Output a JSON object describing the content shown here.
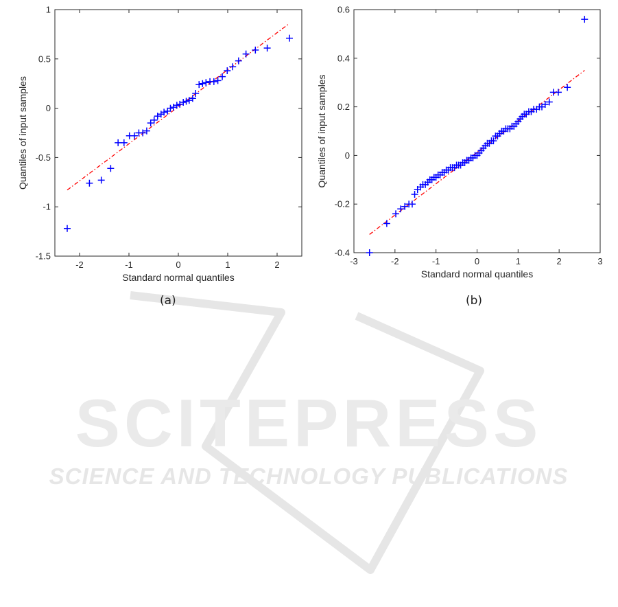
{
  "watermark": {
    "brand": "SCITEPRESS",
    "tagline": "SCIENCE AND TECHNOLOGY PUBLICATIONS"
  },
  "chart_data": [
    {
      "type": "scatter",
      "caption": "(a)",
      "title": "",
      "xlabel": "Standard normal quantiles",
      "ylabel": "Quantiles of input samples",
      "xlim": [
        -2.5,
        2.5
      ],
      "ylim": [
        -1.5,
        1
      ],
      "xticks": [
        -2,
        -1,
        0,
        1,
        2
      ],
      "yticks": [
        -1.5,
        -1,
        -0.5,
        0,
        0.5,
        1
      ],
      "grid": false,
      "colors": {
        "points": "#0000ff",
        "reference_line": "#ff0000"
      },
      "series": [
        {
          "marker": "+",
          "x": [
            -2.25,
            -1.8,
            -1.56,
            -1.37,
            -1.22,
            -1.1,
            -0.99,
            -0.89,
            -0.8,
            -0.72,
            -0.64,
            -0.56,
            -0.49,
            -0.42,
            -0.35,
            -0.29,
            -0.22,
            -0.16,
            -0.1,
            -0.03,
            0.03,
            0.1,
            0.16,
            0.22,
            0.29,
            0.35,
            0.42,
            0.49,
            0.56,
            0.64,
            0.72,
            0.8,
            0.89,
            0.99,
            1.1,
            1.22,
            1.37,
            1.56,
            1.8,
            2.25
          ],
          "y": [
            -1.22,
            -0.76,
            -0.73,
            -0.61,
            -0.35,
            -0.35,
            -0.28,
            -0.28,
            -0.25,
            -0.25,
            -0.23,
            -0.15,
            -0.12,
            -0.08,
            -0.06,
            -0.04,
            -0.03,
            0.0,
            0.01,
            0.03,
            0.04,
            0.06,
            0.07,
            0.08,
            0.1,
            0.15,
            0.24,
            0.25,
            0.26,
            0.27,
            0.27,
            0.28,
            0.32,
            0.38,
            0.42,
            0.48,
            0.55,
            0.59,
            0.61,
            0.71
          ]
        }
      ],
      "reference_line": {
        "x": [
          -2.25,
          2.25
        ],
        "y": [
          -0.83,
          0.86
        ],
        "style": "dash-dot"
      }
    },
    {
      "type": "scatter",
      "caption": "(b)",
      "title": "",
      "xlabel": "Standard normal quantiles",
      "ylabel": "Quantiles of input samples",
      "xlim": [
        -3,
        3
      ],
      "ylim": [
        -0.4,
        0.6
      ],
      "xticks": [
        -3,
        -2,
        -1,
        0,
        1,
        2,
        3
      ],
      "yticks": [
        -0.4,
        -0.2,
        0,
        0.2,
        0.4,
        0.6
      ],
      "grid": false,
      "colors": {
        "points": "#0000ff",
        "reference_line": "#ff0000"
      },
      "series": [
        {
          "marker": "+",
          "x": [
            -2.62,
            -2.2,
            -1.98,
            -1.86,
            -1.76,
            -1.66,
            -1.58,
            -1.52,
            -1.45,
            -1.38,
            -1.32,
            -1.26,
            -1.2,
            -1.15,
            -1.1,
            -1.05,
            -1.0,
            -0.95,
            -0.9,
            -0.85,
            -0.8,
            -0.75,
            -0.7,
            -0.65,
            -0.6,
            -0.55,
            -0.5,
            -0.45,
            -0.4,
            -0.35,
            -0.3,
            -0.25,
            -0.2,
            -0.15,
            -0.1,
            -0.05,
            0.0,
            0.05,
            0.1,
            0.15,
            0.2,
            0.25,
            0.3,
            0.35,
            0.4,
            0.45,
            0.5,
            0.55,
            0.6,
            0.65,
            0.7,
            0.75,
            0.8,
            0.85,
            0.9,
            0.95,
            1.0,
            1.05,
            1.1,
            1.15,
            1.2,
            1.26,
            1.32,
            1.38,
            1.45,
            1.52,
            1.58,
            1.66,
            1.76,
            1.86,
            1.98,
            2.2,
            2.62
          ],
          "y": [
            -0.4,
            -0.28,
            -0.24,
            -0.22,
            -0.21,
            -0.2,
            -0.2,
            -0.16,
            -0.14,
            -0.13,
            -0.12,
            -0.12,
            -0.11,
            -0.1,
            -0.1,
            -0.09,
            -0.09,
            -0.08,
            -0.08,
            -0.07,
            -0.07,
            -0.06,
            -0.06,
            -0.05,
            -0.05,
            -0.05,
            -0.04,
            -0.04,
            -0.04,
            -0.03,
            -0.03,
            -0.02,
            -0.02,
            -0.01,
            -0.01,
            0.0,
            0.0,
            0.01,
            0.02,
            0.03,
            0.04,
            0.05,
            0.05,
            0.06,
            0.06,
            0.08,
            0.08,
            0.09,
            0.1,
            0.1,
            0.11,
            0.11,
            0.11,
            0.12,
            0.12,
            0.13,
            0.14,
            0.15,
            0.16,
            0.17,
            0.17,
            0.18,
            0.18,
            0.19,
            0.19,
            0.2,
            0.2,
            0.21,
            0.22,
            0.26,
            0.26,
            0.28,
            0.56
          ]
        }
      ],
      "reference_line": {
        "x": [
          -2.62,
          2.62
        ],
        "y": [
          -0.325,
          0.35
        ],
        "style": "dash-dot"
      }
    }
  ]
}
